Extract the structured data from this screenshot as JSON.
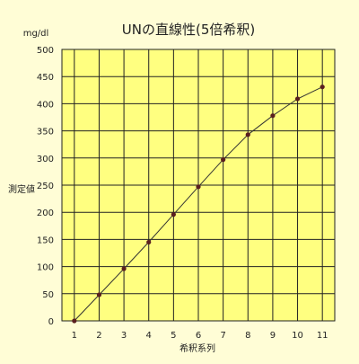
{
  "chart_data": {
    "type": "line",
    "title": "UNの直線性(5倍希釈)",
    "unit_label": "mg/dl",
    "xlabel": "希釈系列",
    "ylabel": "測定値",
    "x": [
      1,
      2,
      3,
      4,
      5,
      6,
      7,
      8,
      9,
      10,
      11
    ],
    "y": [
      0,
      48,
      96,
      145,
      196,
      247,
      297,
      343,
      378,
      409,
      431
    ],
    "xlim": [
      0.5,
      11.5
    ],
    "ylim": [
      0,
      500
    ],
    "xticks": [
      "1",
      "2",
      "3",
      "4",
      "5",
      "6",
      "7",
      "8",
      "9",
      "10",
      "11"
    ],
    "yticks": [
      "0",
      "50",
      "100",
      "150",
      "200",
      "250",
      "300",
      "350",
      "400",
      "450",
      "500"
    ],
    "grid": true,
    "colors": {
      "background": "#fffdd6",
      "plot_area": "#ffff80",
      "grid": "#222222",
      "line": "#333333",
      "marker": "#5a1f1f"
    }
  }
}
